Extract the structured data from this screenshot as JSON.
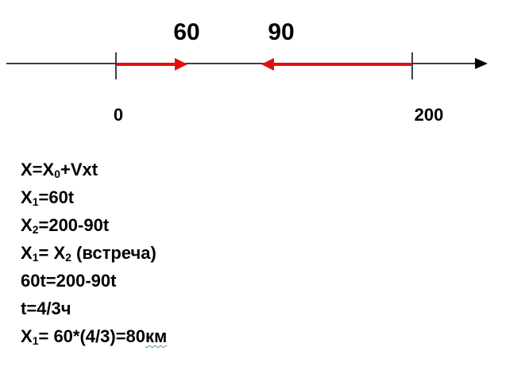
{
  "axis": {
    "speed_left": "60",
    "speed_right": "90",
    "tick_start": "0",
    "tick_end": "200",
    "arrow_color": "#e01010",
    "axis_color": "#000000"
  },
  "equations": [
    {
      "parts": [
        "X=X",
        {
          "sub": "0"
        },
        "+Vxt"
      ]
    },
    {
      "parts": [
        "X",
        {
          "sub": "1"
        },
        "=60t"
      ]
    },
    {
      "parts": [
        "X",
        {
          "sub": "2"
        },
        "=200-90t"
      ]
    },
    {
      "parts": [
        "X",
        {
          "sub": "1"
        },
        "= X",
        {
          "sub": "2"
        },
        " (встреча)"
      ]
    },
    {
      "parts": [
        "60t=200-90t"
      ]
    },
    {
      "parts": [
        "t=4/3ч"
      ]
    },
    {
      "parts": [
        "X",
        {
          "sub": "1"
        },
        "= 60*(4/3)=80",
        {
          "squiggle": "км"
        }
      ]
    }
  ]
}
